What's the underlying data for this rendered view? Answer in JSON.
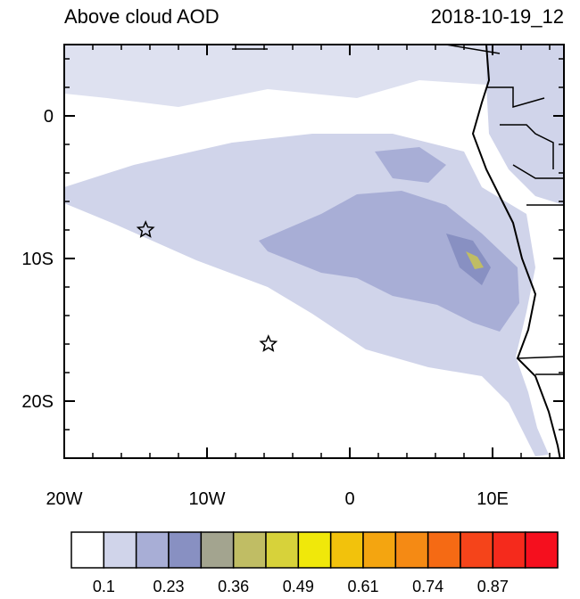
{
  "map": {
    "title": "Above cloud AOD",
    "time": "2018-10-19_12",
    "xlim": [
      -20,
      15
    ],
    "ylim": [
      -24,
      5
    ],
    "xticks": [
      {
        "value": -20,
        "label": "20W"
      },
      {
        "value": -10,
        "label": "10W"
      },
      0,
      {
        "value": 10,
        "label": "10E"
      }
    ],
    "yticks": [
      0,
      {
        "value": -10,
        "label": "10S"
      },
      {
        "value": -20,
        "label": "20S"
      }
    ],
    "markers": [
      {
        "lon": -14.3,
        "lat": -8
      },
      {
        "lon": -5.7,
        "lat": -16
      }
    ],
    "colorbar": {
      "colors": [
        "#ffffff",
        "#d0d4ea",
        "#a8aed6",
        "#8890c2",
        "#a3a48f",
        "#c0bd64",
        "#d7d23a",
        "#f0e80a",
        "#f2c20c",
        "#f4a510",
        "#f58a14",
        "#f56a14",
        "#f5441a",
        "#f52a1c",
        "#f50f1e"
      ],
      "labels": [
        0.1,
        0.23,
        0.36,
        0.49,
        0.61,
        0.74,
        0.87
      ]
    }
  }
}
